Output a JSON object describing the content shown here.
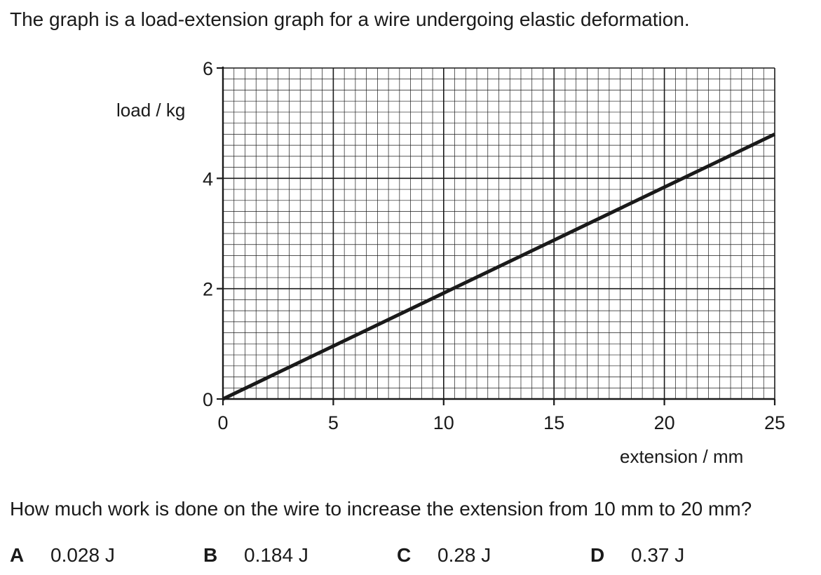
{
  "question": {
    "intro": "The graph is a load-extension graph for a wire undergoing elastic deformation.",
    "prompt": "How much work is done on the wire to increase the extension from 10 mm to 20 mm?",
    "options": [
      {
        "letter": "A",
        "text": "0.028 J"
      },
      {
        "letter": "B",
        "text": "0.184 J"
      },
      {
        "letter": "C",
        "text": "0.28 J"
      },
      {
        "letter": "D",
        "text": "0.37 J"
      }
    ]
  },
  "chart_data": {
    "type": "line",
    "title": "",
    "xlabel": "extension / mm",
    "ylabel": "load / kg",
    "xlim": [
      0,
      25
    ],
    "ylim": [
      0,
      6
    ],
    "xticks": [
      0,
      5,
      10,
      15,
      20,
      25
    ],
    "yticks": [
      0,
      2,
      4,
      6
    ],
    "grid": true,
    "minor_divisions": 10,
    "series": [
      {
        "x": [
          0,
          25
        ],
        "y": [
          0,
          4.8
        ]
      }
    ],
    "colors": {
      "grid": "#1a1a1a",
      "line": "#1a1a1a"
    }
  }
}
